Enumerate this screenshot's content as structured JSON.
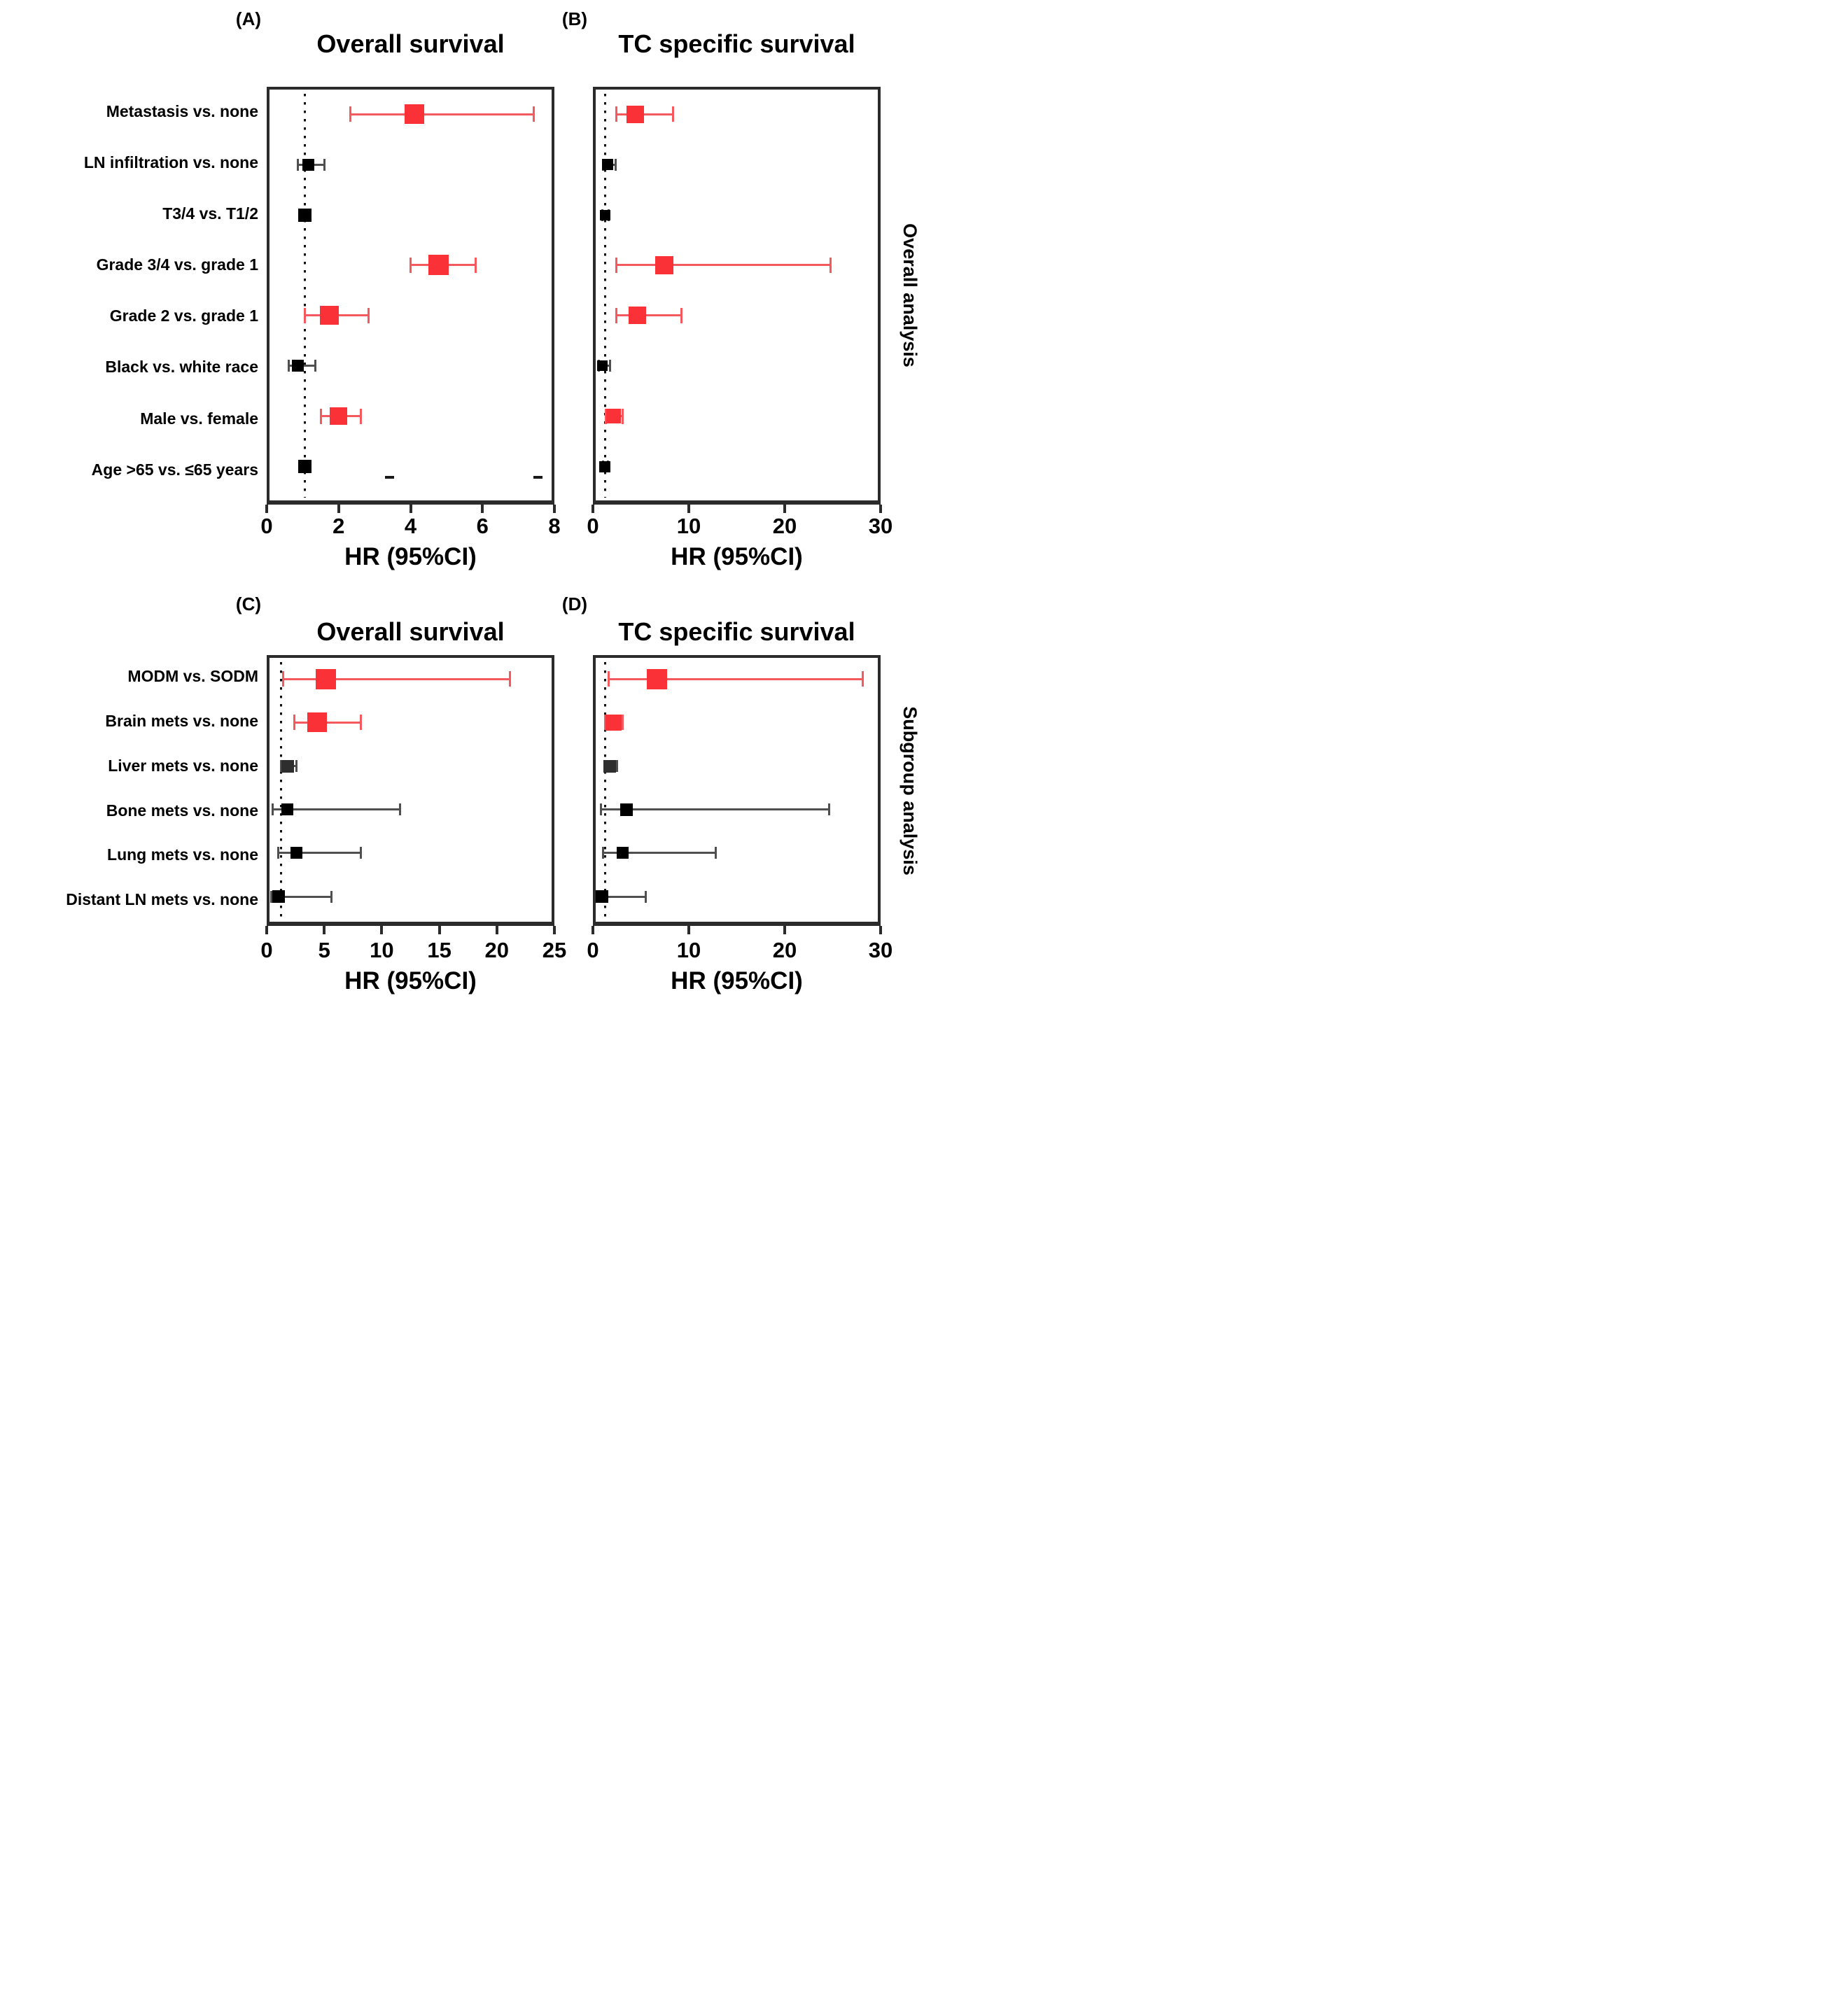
{
  "figure_caption": "Forest plots of hazard ratios",
  "colors": {
    "significant_marker": "#fa3238",
    "significant_bar": "#f4595e",
    "nonsignificant_marker": "#000000",
    "nonsignificant_bar": "#4f4f4f",
    "liver_marker": "#2e2e2e",
    "frame": "#2b2b2b",
    "reference_line": "#101010",
    "background": "#ffffff"
  },
  "side_labels": [
    {
      "text": "Overall analysis"
    },
    {
      "text": "Subgroup analysis"
    }
  ],
  "chart_data": [
    {
      "type": "scatter",
      "panel_tag": "(A)",
      "title": "Overall survival",
      "xlabel": "HR (95%CI)",
      "section": "Overall analysis",
      "axis": {
        "min": 0,
        "max": 8,
        "ticks": [
          0,
          2,
          4,
          6,
          8
        ]
      },
      "reference_line_x": 1,
      "grid": false,
      "rows": [
        {
          "label": "Metastasis vs. none",
          "hr": 4.1,
          "lo": 2.3,
          "hi": 7.5,
          "significant": true,
          "size": 28
        },
        {
          "label": "LN infiltration vs. none",
          "hr": 1.1,
          "lo": 0.8,
          "hi": 1.55,
          "significant": false,
          "size": 17
        },
        {
          "label": "T3/4 vs. T1/2",
          "hr": 1.0,
          "lo": 0.88,
          "hi": 1.15,
          "significant": false,
          "size": 19
        },
        {
          "label": "Grade 3/4 vs. grade 1",
          "hr": 4.8,
          "lo": 4.0,
          "hi": 5.85,
          "significant": true,
          "size": 29
        },
        {
          "label": "Grade 2 vs. grade 1",
          "hr": 1.7,
          "lo": 1.0,
          "hi": 2.8,
          "significant": true,
          "size": 27
        },
        {
          "label": "Black vs. white race",
          "hr": 0.8,
          "lo": 0.55,
          "hi": 1.3,
          "significant": false,
          "size": 17
        },
        {
          "label": "Male vs. female",
          "hr": 1.95,
          "lo": 1.45,
          "hi": 2.6,
          "significant": true,
          "size": 25
        },
        {
          "label": "Age >65 vs. ≤65 years",
          "hr": 1.0,
          "lo": 0.88,
          "hi": 1.15,
          "significant": false,
          "size": 19
        }
      ],
      "artifact_dashes_x": [
        3.4,
        7.6
      ]
    },
    {
      "type": "scatter",
      "panel_tag": "(B)",
      "title": "TC specific survival",
      "xlabel": "HR (95%CI)",
      "section": "Overall analysis",
      "axis": {
        "min": 0,
        "max": 30,
        "ticks": [
          0,
          10,
          20,
          30
        ]
      },
      "reference_line_x": 1,
      "grid": false,
      "rows": [
        {
          "label": "Metastasis vs. none",
          "hr": 4.2,
          "lo": 2.2,
          "hi": 8.2,
          "significant": true,
          "size": 25
        },
        {
          "label": "LN infiltration vs. none",
          "hr": 1.3,
          "lo": 0.8,
          "hi": 2.1,
          "significant": false,
          "size": 16
        },
        {
          "label": "T3/4 vs. T1/2",
          "hr": 1.0,
          "lo": 0.7,
          "hi": 1.4,
          "significant": false,
          "size": 15
        },
        {
          "label": "Grade 3/4 vs. grade 1",
          "hr": 7.3,
          "lo": 2.2,
          "hi": 25.0,
          "significant": true,
          "size": 26
        },
        {
          "label": "Grade 2 vs. grade 1",
          "hr": 4.4,
          "lo": 2.2,
          "hi": 9.1,
          "significant": true,
          "size": 25
        },
        {
          "label": "Black vs. white race",
          "hr": 0.7,
          "lo": 0.3,
          "hi": 1.5,
          "significant": false,
          "size": 15
        },
        {
          "label": "Male vs. female",
          "hr": 1.9,
          "lo": 1.1,
          "hi": 2.9,
          "significant": true,
          "size": 21
        },
        {
          "label": "Age >65 vs. ≤65 years",
          "hr": 1.0,
          "lo": 0.8,
          "hi": 1.3,
          "significant": false,
          "size": 16
        }
      ],
      "artifact_dashes_x": []
    },
    {
      "type": "scatter",
      "panel_tag": "(C)",
      "title": "Overall survival",
      "xlabel": "HR (95%CI)",
      "section": "Subgroup analysis",
      "axis": {
        "min": 0,
        "max": 25,
        "ticks": [
          0,
          5,
          10,
          15,
          20,
          25
        ]
      },
      "reference_line_x": 1,
      "grid": false,
      "rows": [
        {
          "label": "MODM vs. SODM",
          "hr": 5.0,
          "lo": 1.2,
          "hi": 21.3,
          "significant": true,
          "size": 29
        },
        {
          "label": "Brain mets vs. none",
          "hr": 4.2,
          "lo": 2.2,
          "hi": 8.1,
          "significant": true,
          "size": 28
        },
        {
          "label": "Liver mets vs. none",
          "hr": 1.6,
          "lo": 1.0,
          "hi": 2.4,
          "significant": false,
          "size": 18,
          "liver": true
        },
        {
          "label": "Bone mets vs. none",
          "hr": 1.6,
          "lo": 0.3,
          "hi": 11.6,
          "significant": false,
          "size": 17
        },
        {
          "label": "Lung mets vs. none",
          "hr": 2.4,
          "lo": 0.75,
          "hi": 8.1,
          "significant": false,
          "size": 17
        },
        {
          "label": "Distant LN mets vs. none",
          "hr": 0.8,
          "lo": 0.15,
          "hi": 5.5,
          "significant": false,
          "size": 18
        }
      ],
      "artifact_dashes_x": []
    },
    {
      "type": "scatter",
      "panel_tag": "(D)",
      "title": "TC specific survival",
      "xlabel": "HR (95%CI)",
      "section": "Subgroup analysis",
      "axis": {
        "min": 0,
        "max": 30,
        "ticks": [
          0,
          10,
          20,
          30
        ]
      },
      "reference_line_x": 1,
      "grid": false,
      "rows": [
        {
          "label": "MODM vs. SODM",
          "hr": 6.5,
          "lo": 1.4,
          "hi": 28.4,
          "significant": true,
          "size": 29
        },
        {
          "label": "Brain mets vs. none",
          "hr": 1.9,
          "lo": 1.0,
          "hi": 2.9,
          "significant": true,
          "size": 23
        },
        {
          "label": "Liver mets vs. none",
          "hr": 1.5,
          "lo": 0.9,
          "hi": 2.3,
          "significant": false,
          "size": 18,
          "liver": true
        },
        {
          "label": "Bone mets vs. none",
          "hr": 3.3,
          "lo": 0.55,
          "hi": 24.8,
          "significant": false,
          "size": 18
        },
        {
          "label": "Lung mets vs. none",
          "hr": 2.9,
          "lo": 0.75,
          "hi": 12.8,
          "significant": false,
          "size": 17
        },
        {
          "label": "Distant LN mets vs. none",
          "hr": 0.7,
          "lo": 0.2,
          "hi": 5.3,
          "significant": false,
          "size": 18
        }
      ],
      "artifact_dashes_x": []
    }
  ]
}
